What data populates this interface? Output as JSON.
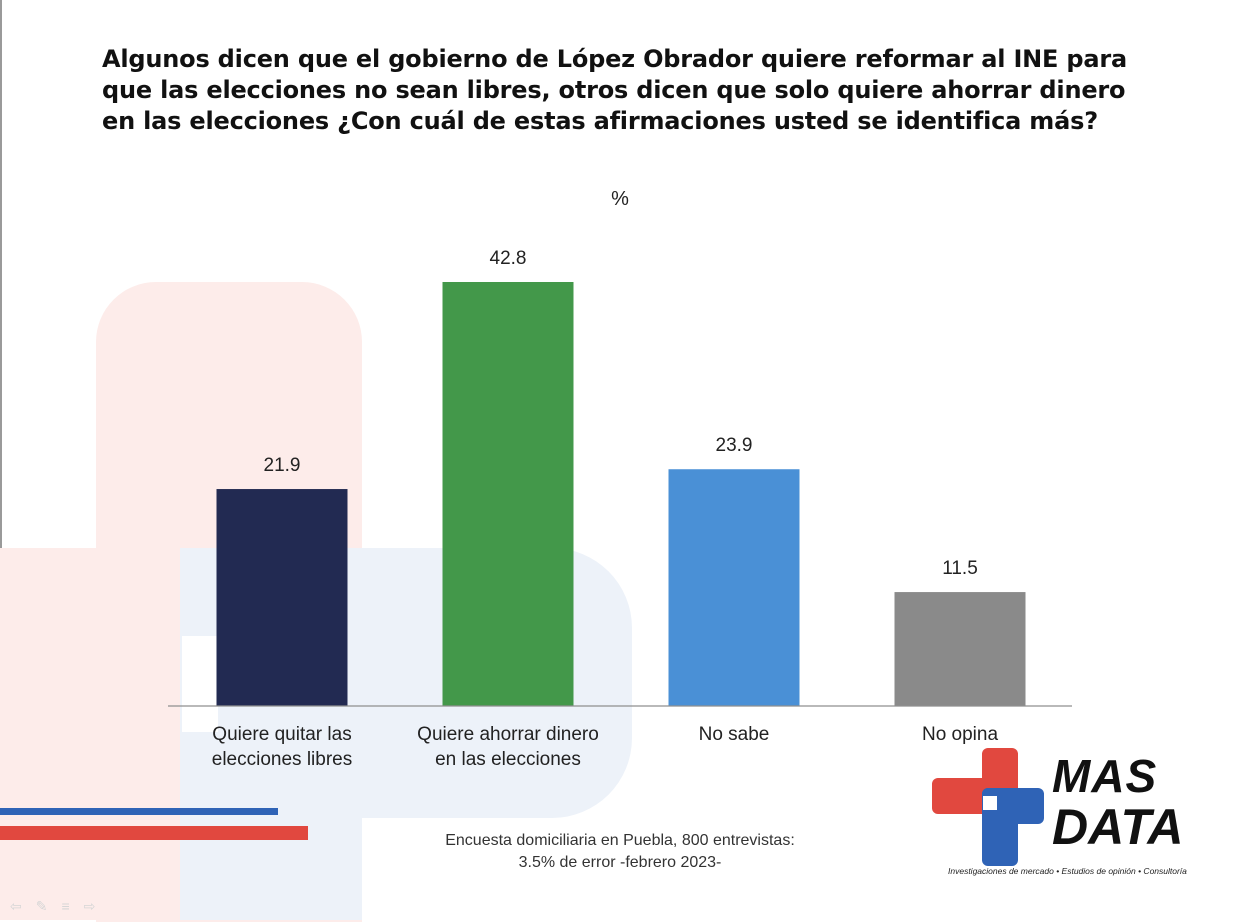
{
  "title": "Algunos dicen que el gobierno de López Obrador quiere reformar al INE para que las elecciones no sean libres, otros dicen que solo quiere ahorrar dinero en las elecciones ¿Con cuál de estas afirmaciones usted se identifica más?",
  "footnote": {
    "line1": "Encuesta domiciliaria en Puebla, 800 entrevistas:",
    "line2": "3.5% de error -febrero 2023-"
  },
  "logo": {
    "line1": "MAS",
    "line2": "DATA",
    "tagline": "Investigaciones de mercado • Estudios de opinión • Consultoría",
    "colors": {
      "red": "#e1483f",
      "blue": "#2f63b6"
    }
  },
  "nav_icons": [
    "back-arrow-icon",
    "pen-icon",
    "menu-icon",
    "forward-arrow-icon"
  ],
  "chart_data": {
    "type": "bar",
    "title": "",
    "unit_label": "%",
    "categories": [
      [
        "Quiere quitar las",
        "elecciones libres"
      ],
      [
        "Quiere ahorrar dinero",
        "en las elecciones"
      ],
      [
        "No sabe"
      ],
      [
        "No opina"
      ]
    ],
    "values": [
      21.9,
      42.8,
      23.9,
      11.5
    ],
    "value_labels": [
      "21.9",
      "42.8",
      "23.9",
      "11.5"
    ],
    "colors": [
      "#222a52",
      "#43984a",
      "#4a90d6",
      "#8a8a8a"
    ],
    "ylim": [
      0,
      42.8
    ],
    "grid": false,
    "legend": "none"
  }
}
